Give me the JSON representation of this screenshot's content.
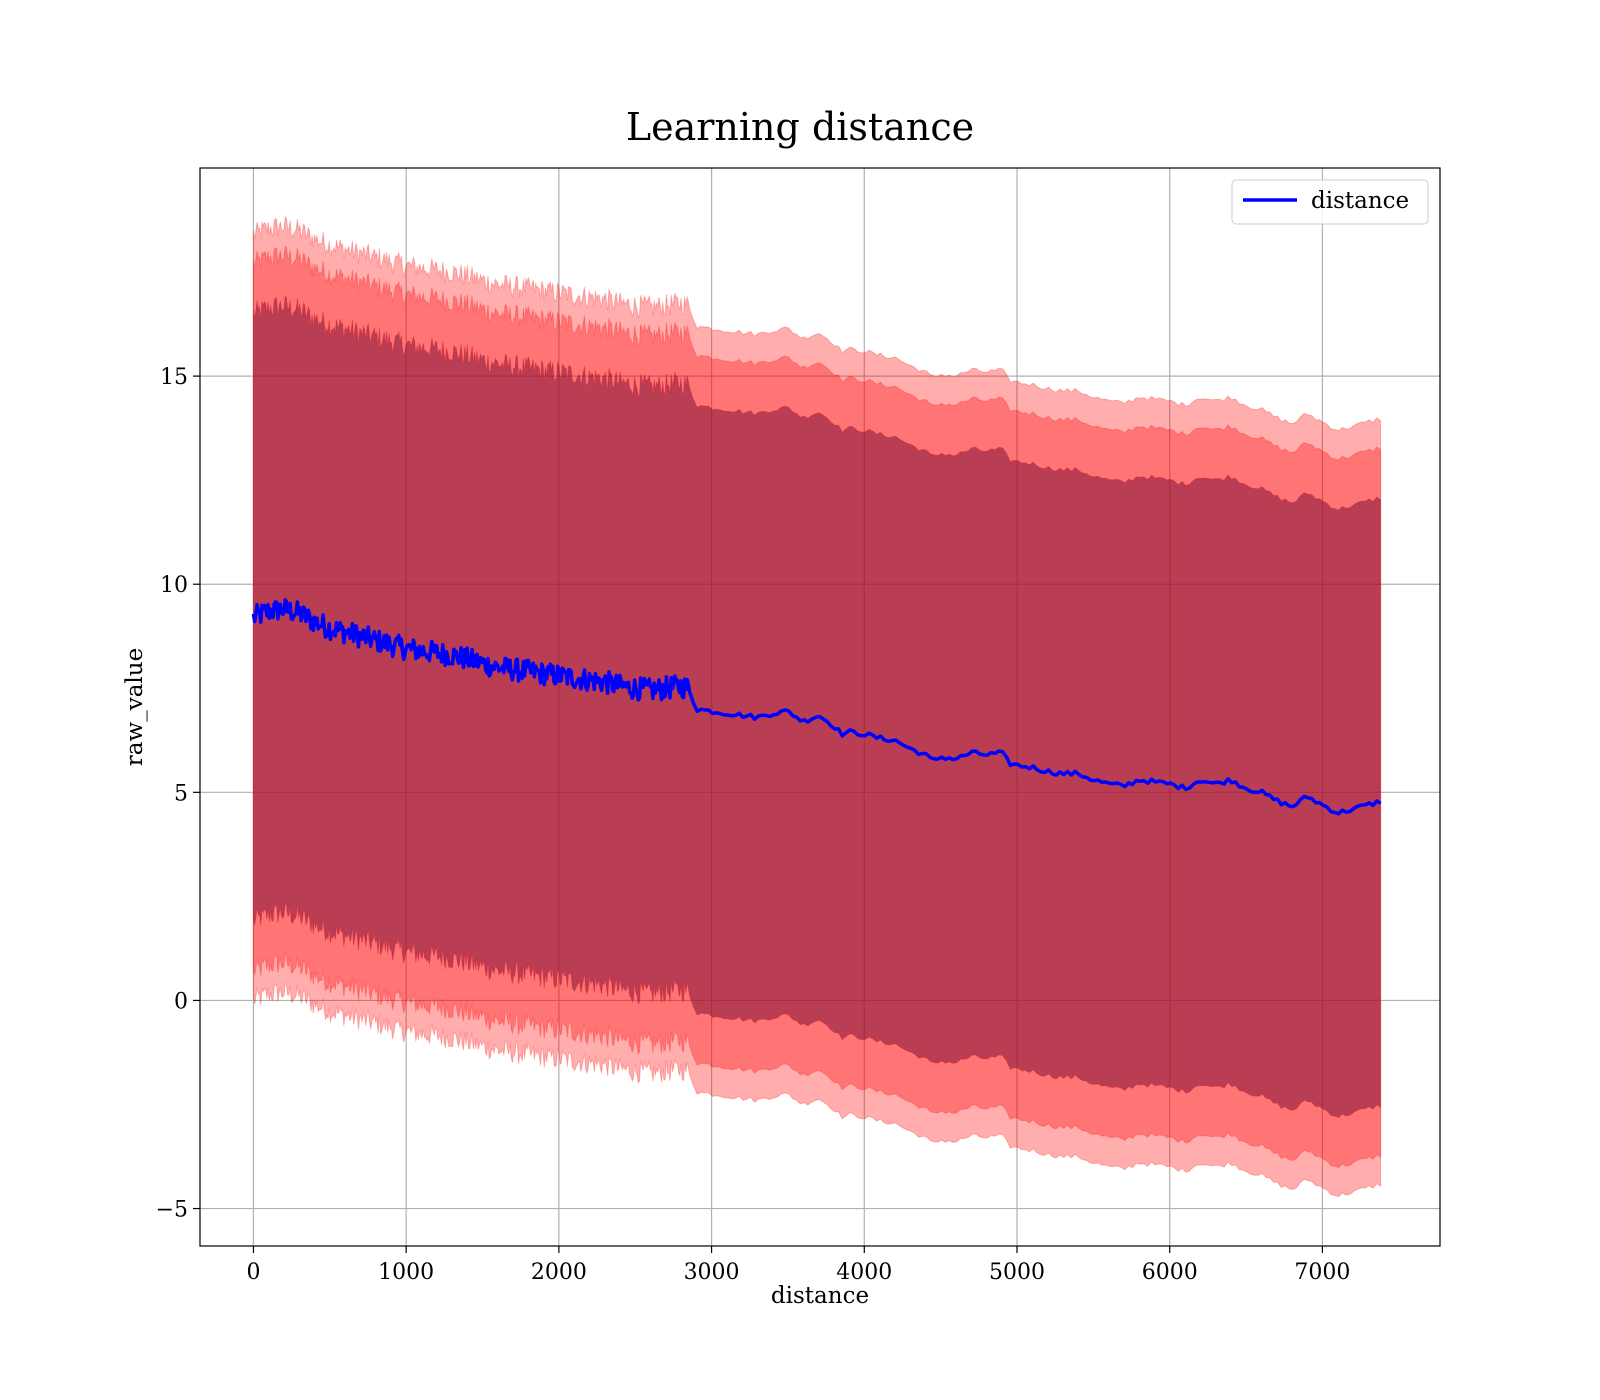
{
  "chart_data": {
    "type": "line",
    "title": "Learning distance",
    "xlabel": "distance",
    "ylabel": "raw_value",
    "xlim": [
      -350,
      7770
    ],
    "ylim": [
      -5.9,
      20.0
    ],
    "x_ticks": [
      0,
      1000,
      2000,
      3000,
      4000,
      5000,
      6000,
      7000
    ],
    "x_tick_labels": [
      "0",
      "1000",
      "2000",
      "3000",
      "4000",
      "5000",
      "6000",
      "7000"
    ],
    "y_ticks": [
      -5,
      0,
      5,
      10,
      15
    ],
    "y_tick_labels": [
      "−5",
      "0",
      "5",
      "10",
      "15"
    ],
    "grid": true,
    "legend_position": "top-right",
    "legend": [
      "distance"
    ],
    "colors": {
      "line": "#0000ff",
      "band": "#ff0000",
      "band_opacity": 0.32
    },
    "series": [
      {
        "name": "distance",
        "x": [
          0,
          100,
          200,
          300,
          400,
          500,
          600,
          700,
          800,
          900,
          1000,
          1100,
          1200,
          1300,
          1400,
          1500,
          1600,
          1700,
          1800,
          1900,
          2000,
          2100,
          2200,
          2300,
          2400,
          2500,
          2600,
          2700,
          2800,
          2850,
          2900,
          3000,
          3100,
          3200,
          3300,
          3400,
          3500,
          3600,
          3700,
          3800,
          3850,
          3900,
          4000,
          4100,
          4200,
          4300,
          4400,
          4450,
          4500,
          4600,
          4700,
          4800,
          4900,
          4950,
          5000,
          5100,
          5200,
          5300,
          5400,
          5500,
          5600,
          5700,
          5800,
          5900,
          6000,
          6100,
          6200,
          6300,
          6400,
          6500,
          6600,
          6700,
          6800,
          6900,
          7000,
          7100,
          7200,
          7300,
          7400
        ],
        "y": [
          9.2,
          9.35,
          9.4,
          9.3,
          9.1,
          8.95,
          8.85,
          8.75,
          8.65,
          8.55,
          8.45,
          8.4,
          8.35,
          8.3,
          8.2,
          8.1,
          8.0,
          7.95,
          7.9,
          7.85,
          7.8,
          7.75,
          7.7,
          7.65,
          7.55,
          7.5,
          7.45,
          7.5,
          7.55,
          7.5,
          7.0,
          6.95,
          6.9,
          6.85,
          6.8,
          6.9,
          6.95,
          6.7,
          6.85,
          6.6,
          6.4,
          6.45,
          6.4,
          6.3,
          6.25,
          6.05,
          5.9,
          5.75,
          5.85,
          5.8,
          5.95,
          5.9,
          5.95,
          5.7,
          5.65,
          5.6,
          5.5,
          5.45,
          5.45,
          5.3,
          5.2,
          5.15,
          5.3,
          5.25,
          5.2,
          5.1,
          5.3,
          5.2,
          5.3,
          5.1,
          5.0,
          4.8,
          4.65,
          4.9,
          4.7,
          4.5,
          4.6,
          4.7,
          4.8
        ]
      },
      {
        "name": "",
        "type": "band",
        "width": 7.3
      },
      {
        "name": "",
        "type": "band",
        "width": 8.5
      },
      {
        "name": "",
        "type": "band",
        "width": 9.2
      }
    ]
  }
}
